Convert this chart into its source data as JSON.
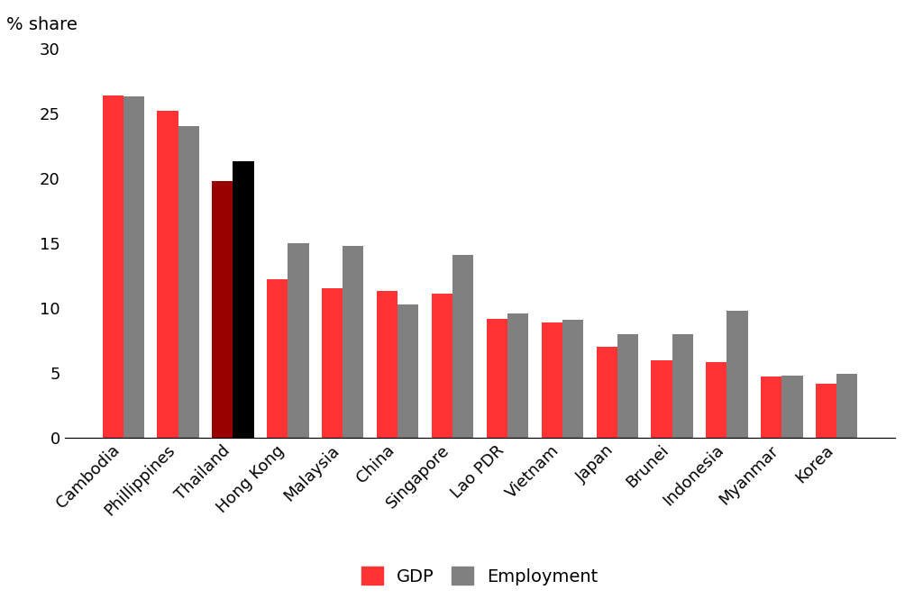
{
  "categories": [
    "Cambodia",
    "Phillippines",
    "Thailand",
    "Hong Kong",
    "Malaysia",
    "China",
    "Singapore",
    "Lao PDR",
    "Vietnam",
    "Japan",
    "Brunei",
    "Indonesia",
    "Myanmar",
    "Korea"
  ],
  "gdp": [
    26.4,
    25.2,
    19.8,
    12.2,
    11.5,
    11.3,
    11.1,
    9.2,
    8.9,
    7.0,
    6.0,
    5.8,
    4.7,
    4.2
  ],
  "employment": [
    26.3,
    24.0,
    21.3,
    15.0,
    14.8,
    10.3,
    14.1,
    9.6,
    9.1,
    8.0,
    8.0,
    9.8,
    4.8,
    4.9
  ],
  "gdp_colors": [
    "#ff3333",
    "#ff3333",
    "#990000",
    "#ff3333",
    "#ff3333",
    "#ff3333",
    "#ff3333",
    "#ff3333",
    "#ff3333",
    "#ff3333",
    "#ff3333",
    "#ff3333",
    "#ff3333",
    "#ff3333"
  ],
  "employment_colors": [
    "#808080",
    "#808080",
    "#000000",
    "#808080",
    "#808080",
    "#808080",
    "#808080",
    "#808080",
    "#808080",
    "#808080",
    "#808080",
    "#808080",
    "#808080",
    "#808080"
  ],
  "gdp_legend_color": "#ff3333",
  "employment_legend_color": "#808080",
  "pct_share_label": "% share",
  "ylim": [
    0,
    30
  ],
  "yticks": [
    0,
    5,
    10,
    15,
    20,
    25,
    30
  ],
  "bar_width": 0.38,
  "figsize": [
    10.24,
    6.75
  ],
  "dpi": 100,
  "label_fontsize": 14,
  "tick_fontsize": 13,
  "legend_fontsize": 14,
  "xtick_rotation": 45
}
